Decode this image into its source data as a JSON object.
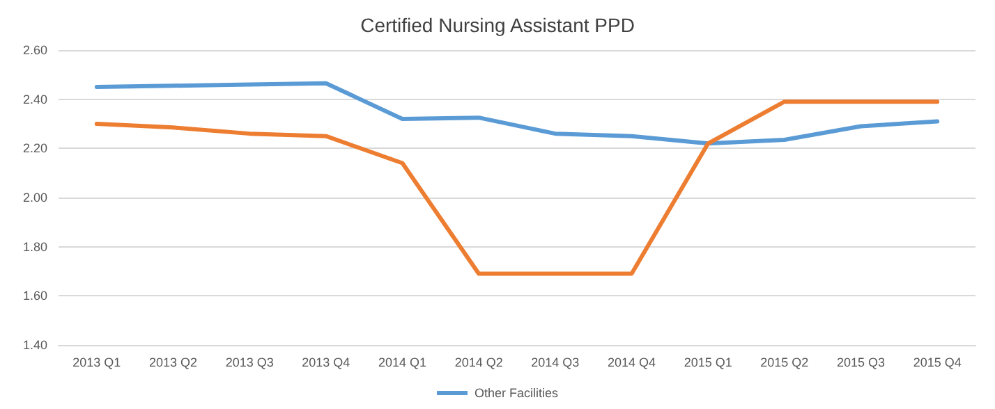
{
  "chart_data": {
    "type": "line",
    "title": "Certified Nursing Assistant PPD",
    "categories": [
      "2013 Q1",
      "2013 Q2",
      "2013 Q3",
      "2013 Q4",
      "2014 Q1",
      "2014 Q2",
      "2014 Q3",
      "2014 Q4",
      "2015 Q1",
      "2015 Q2",
      "2015 Q3",
      "2015 Q4"
    ],
    "series": [
      {
        "name": "Other Facilities",
        "color": "#5b9bd5",
        "values": [
          2.45,
          2.455,
          2.46,
          2.465,
          2.32,
          2.325,
          2.26,
          2.25,
          2.22,
          2.235,
          2.29,
          2.31
        ]
      },
      {
        "color": "#ed7d31",
        "values": [
          2.3,
          2.285,
          2.26,
          2.25,
          2.14,
          1.69,
          1.69,
          1.69,
          2.22,
          2.39,
          2.39,
          2.39
        ]
      }
    ],
    "ylim": [
      1.4,
      2.6
    ],
    "yticks": [
      {
        "value": 1.4,
        "label": "1.40"
      },
      {
        "value": 1.6,
        "label": "1.60"
      },
      {
        "value": 1.8,
        "label": "1.80"
      },
      {
        "value": 2.0,
        "label": "2.00"
      },
      {
        "value": 2.2,
        "label": "2.20"
      },
      {
        "value": 2.4,
        "label": "2.40"
      },
      {
        "value": 2.6,
        "label": "2.60"
      }
    ],
    "grid": "y",
    "legend": "bottom",
    "marker": "none",
    "line_style": "solid"
  }
}
